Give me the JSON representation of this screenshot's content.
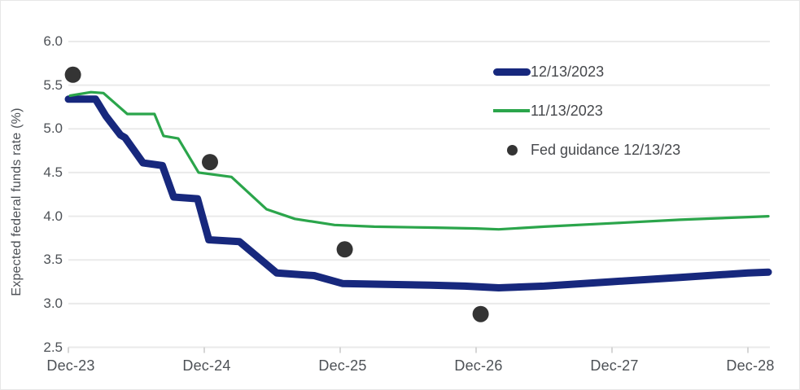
{
  "chart_data": {
    "type": "line",
    "title": "",
    "xlabel": "",
    "ylabel": "Expected federal funds rate (%)",
    "ylim": [
      2.5,
      6.0
    ],
    "xlim_months": [
      0,
      61.8
    ],
    "grid": "horizontal-only",
    "legend_position": "inside-top-right",
    "x_axis": {
      "unit": "months since Dec-2023",
      "ticks": [
        {
          "m": 0,
          "label": "Dec-23"
        },
        {
          "m": 12,
          "label": "Dec-24"
        },
        {
          "m": 24,
          "label": "Dec-25"
        },
        {
          "m": 36,
          "label": "Dec-26"
        },
        {
          "m": 48,
          "label": "Dec-27"
        },
        {
          "m": 60,
          "label": "Dec-28"
        }
      ]
    },
    "y_axis": {
      "ticks": [
        {
          "v": 6.0,
          "label": "6.0"
        },
        {
          "v": 5.5,
          "label": "5.5"
        },
        {
          "v": 5.0,
          "label": "5.0"
        },
        {
          "v": 4.5,
          "label": "4.5"
        },
        {
          "v": 4.0,
          "label": "4.0"
        },
        {
          "v": 3.5,
          "label": "3.5"
        },
        {
          "v": 3.0,
          "label": "3.0"
        },
        {
          "v": 2.5,
          "label": "2.5"
        }
      ]
    },
    "series": [
      {
        "name": "12/13/2023",
        "style": "thick",
        "color": "#17287d",
        "stroke_width": 9,
        "points": [
          [
            0,
            5.34
          ],
          [
            2.4,
            5.34
          ],
          [
            3.3,
            5.15
          ],
          [
            4.6,
            4.93
          ],
          [
            5.0,
            4.9
          ],
          [
            6.6,
            4.61
          ],
          [
            8.3,
            4.58
          ],
          [
            9.3,
            4.22
          ],
          [
            11.4,
            4.2
          ],
          [
            12.4,
            3.73
          ],
          [
            15.1,
            3.71
          ],
          [
            18.4,
            3.35
          ],
          [
            21.7,
            3.32
          ],
          [
            24.2,
            3.23
          ],
          [
            28,
            3.22
          ],
          [
            32,
            3.21
          ],
          [
            35,
            3.2
          ],
          [
            38,
            3.18
          ],
          [
            42,
            3.2
          ],
          [
            48,
            3.25
          ],
          [
            54,
            3.3
          ],
          [
            60,
            3.35
          ],
          [
            61.8,
            3.36
          ]
        ]
      },
      {
        "name": "11/13/2023",
        "style": "thin",
        "color": "#2ba54b",
        "stroke_width": 3.2,
        "points": [
          [
            0.15,
            5.38
          ],
          [
            2,
            5.42
          ],
          [
            3.1,
            5.41
          ],
          [
            5.2,
            5.17
          ],
          [
            7.6,
            5.17
          ],
          [
            8.4,
            4.92
          ],
          [
            9.7,
            4.89
          ],
          [
            11.5,
            4.5
          ],
          [
            14.4,
            4.45
          ],
          [
            17.5,
            4.08
          ],
          [
            20,
            3.97
          ],
          [
            23.5,
            3.9
          ],
          [
            27,
            3.88
          ],
          [
            32,
            3.87
          ],
          [
            36,
            3.86
          ],
          [
            38,
            3.85
          ],
          [
            42,
            3.88
          ],
          [
            48,
            3.92
          ],
          [
            54,
            3.96
          ],
          [
            60,
            3.99
          ],
          [
            61.8,
            4.0
          ]
        ]
      }
    ],
    "scatter": [
      {
        "name": "Fed guidance 12/13/23",
        "color": "#343434",
        "radius": 10,
        "points": [
          [
            0.4,
            5.62
          ],
          [
            12.5,
            4.62
          ],
          [
            24.4,
            3.62
          ],
          [
            36.4,
            2.88
          ]
        ]
      }
    ],
    "legend": [
      {
        "label": "12/13/2023",
        "swatch": "thick-line",
        "color": "#17287d"
      },
      {
        "label": "11/13/2023",
        "swatch": "thin-line",
        "color": "#2ba54b"
      },
      {
        "label": "Fed guidance 12/13/23",
        "swatch": "dot",
        "color": "#343434"
      }
    ]
  },
  "colors": {
    "background": "#ffffff",
    "border": "#e7e7e7",
    "gridline": "#eaeaea",
    "tick_mark": "#c9c9c9",
    "axis_text": "#4d5156",
    "legend_text": "#46484c"
  }
}
